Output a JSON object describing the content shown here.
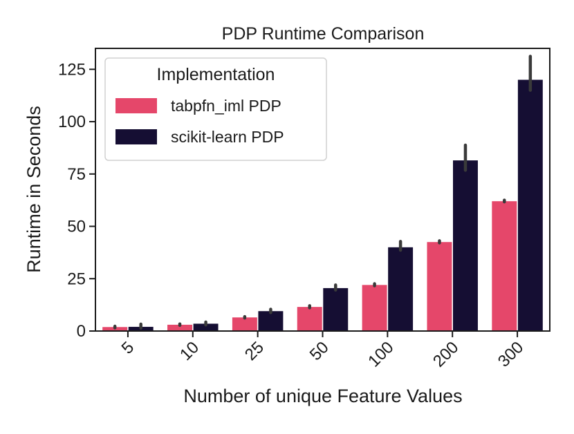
{
  "chart_data": {
    "type": "bar",
    "title": "PDP Runtime Comparison",
    "xlabel": "Number of unique Feature Values",
    "ylabel": "Runtime in Seconds",
    "categories": [
      "5",
      "10",
      "25",
      "50",
      "100",
      "200",
      "300"
    ],
    "ylim": [
      0,
      135
    ],
    "yticks": [
      "0",
      "25",
      "50",
      "75",
      "100",
      "125"
    ],
    "legend": {
      "title": "Implementation",
      "position": "top-left"
    },
    "series": [
      {
        "name": "tabpfn_iml PDP",
        "color": "#e5476a",
        "values": [
          1.9,
          3.0,
          6.5,
          11.5,
          22,
          42.5,
          62
        ],
        "error_low": [
          1.5,
          2.7,
          6.2,
          11.1,
          21.6,
          42.1,
          61.7
        ],
        "error_high": [
          2.3,
          3.4,
          6.9,
          12.1,
          22.6,
          43.1,
          62.5
        ]
      },
      {
        "name": "scikit-learn PDP",
        "color": "#150e33",
        "values": [
          2.0,
          3.5,
          9.5,
          20.5,
          40,
          81.5,
          120
        ],
        "error_low": [
          1.4,
          2.9,
          8.8,
          19.6,
          38.6,
          76.8,
          115
        ],
        "error_high": [
          3.3,
          4.3,
          10.4,
          22.0,
          42.8,
          88.8,
          131.2
        ]
      }
    ]
  }
}
